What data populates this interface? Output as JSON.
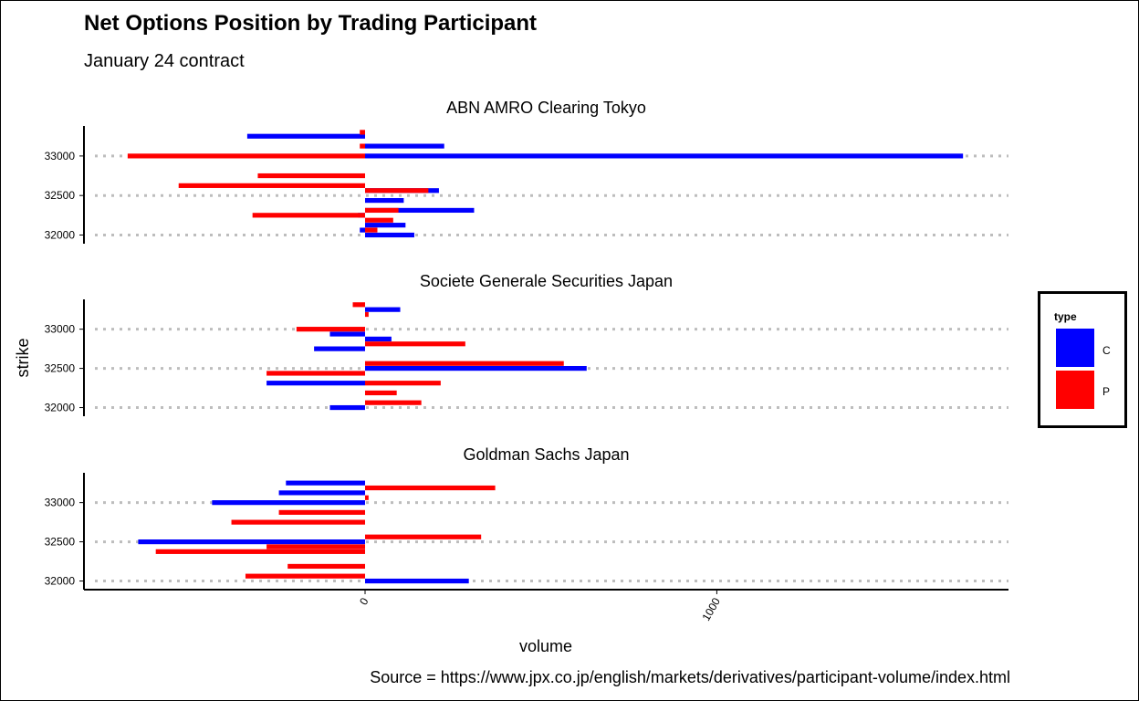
{
  "title": "Net Options Position by Trading Participant",
  "subtitle": "January 24 contract",
  "caption": "Source = https://www.jpx.co.jp/english/markets/derivatives/participant-volume/index.html",
  "colors": {
    "C": "#0000ff",
    "P": "#ff0000",
    "grid": "#bdbdbd"
  },
  "legend": {
    "title": "type",
    "items": [
      {
        "key": "C",
        "label": "C"
      },
      {
        "key": "P",
        "label": "P"
      }
    ]
  },
  "chart_data": {
    "type": "bar",
    "orientation": "horizontal",
    "xlabel": "volume",
    "ylabel": "strike",
    "xticks": [
      0,
      1000
    ],
    "xlim": [
      -800,
      1830
    ],
    "yticks": [
      32000,
      32500,
      33000
    ],
    "ylim": [
      31890,
      33380
    ],
    "grid": "horizontal dotted at y ticks",
    "legend_position": "right",
    "panels": [
      {
        "name": "ABN AMRO Clearing Tokyo",
        "C": [
          [
            32000,
            140
          ],
          [
            32062.5,
            -15
          ],
          [
            32125,
            115
          ],
          [
            32250,
            -20
          ],
          [
            32312.5,
            310
          ],
          [
            32437.5,
            110
          ],
          [
            32562.5,
            210
          ],
          [
            33000,
            1700
          ],
          [
            33125,
            225
          ],
          [
            33250,
            -335
          ]
        ],
        "P": [
          [
            32062.5,
            35
          ],
          [
            32187.5,
            80
          ],
          [
            32250,
            -320
          ],
          [
            32312.5,
            95
          ],
          [
            32562.5,
            180
          ],
          [
            32625,
            -530
          ],
          [
            32750,
            -305
          ],
          [
            33000,
            -675
          ],
          [
            33125,
            -15
          ],
          [
            33300,
            -15
          ]
        ]
      },
      {
        "name": "Societe Generale Securities Japan",
        "C": [
          [
            32000,
            -100
          ],
          [
            32312.5,
            -280
          ],
          [
            32500,
            630
          ],
          [
            32750,
            -145
          ],
          [
            32875,
            75
          ],
          [
            32937.5,
            -100
          ],
          [
            33250,
            100
          ]
        ],
        "P": [
          [
            32062.5,
            160
          ],
          [
            32187.5,
            90
          ],
          [
            32312.5,
            215
          ],
          [
            32437.5,
            -280
          ],
          [
            32562.5,
            565
          ],
          [
            32812.5,
            285
          ],
          [
            33000,
            -195
          ],
          [
            33187.5,
            10
          ],
          [
            33312.5,
            -35
          ]
        ]
      },
      {
        "name": "Goldman Sachs Japan",
        "C": [
          [
            32000,
            295
          ],
          [
            32500,
            -645
          ],
          [
            33000,
            -435
          ],
          [
            33125,
            -245
          ],
          [
            33250,
            -225
          ]
        ],
        "P": [
          [
            32062.5,
            -340
          ],
          [
            32187.5,
            -220
          ],
          [
            32375,
            -595
          ],
          [
            32437.5,
            -280
          ],
          [
            32562.5,
            330
          ],
          [
            32750,
            -380
          ],
          [
            32875,
            -245
          ],
          [
            33062.5,
            10
          ],
          [
            33187.5,
            370
          ]
        ]
      }
    ]
  }
}
